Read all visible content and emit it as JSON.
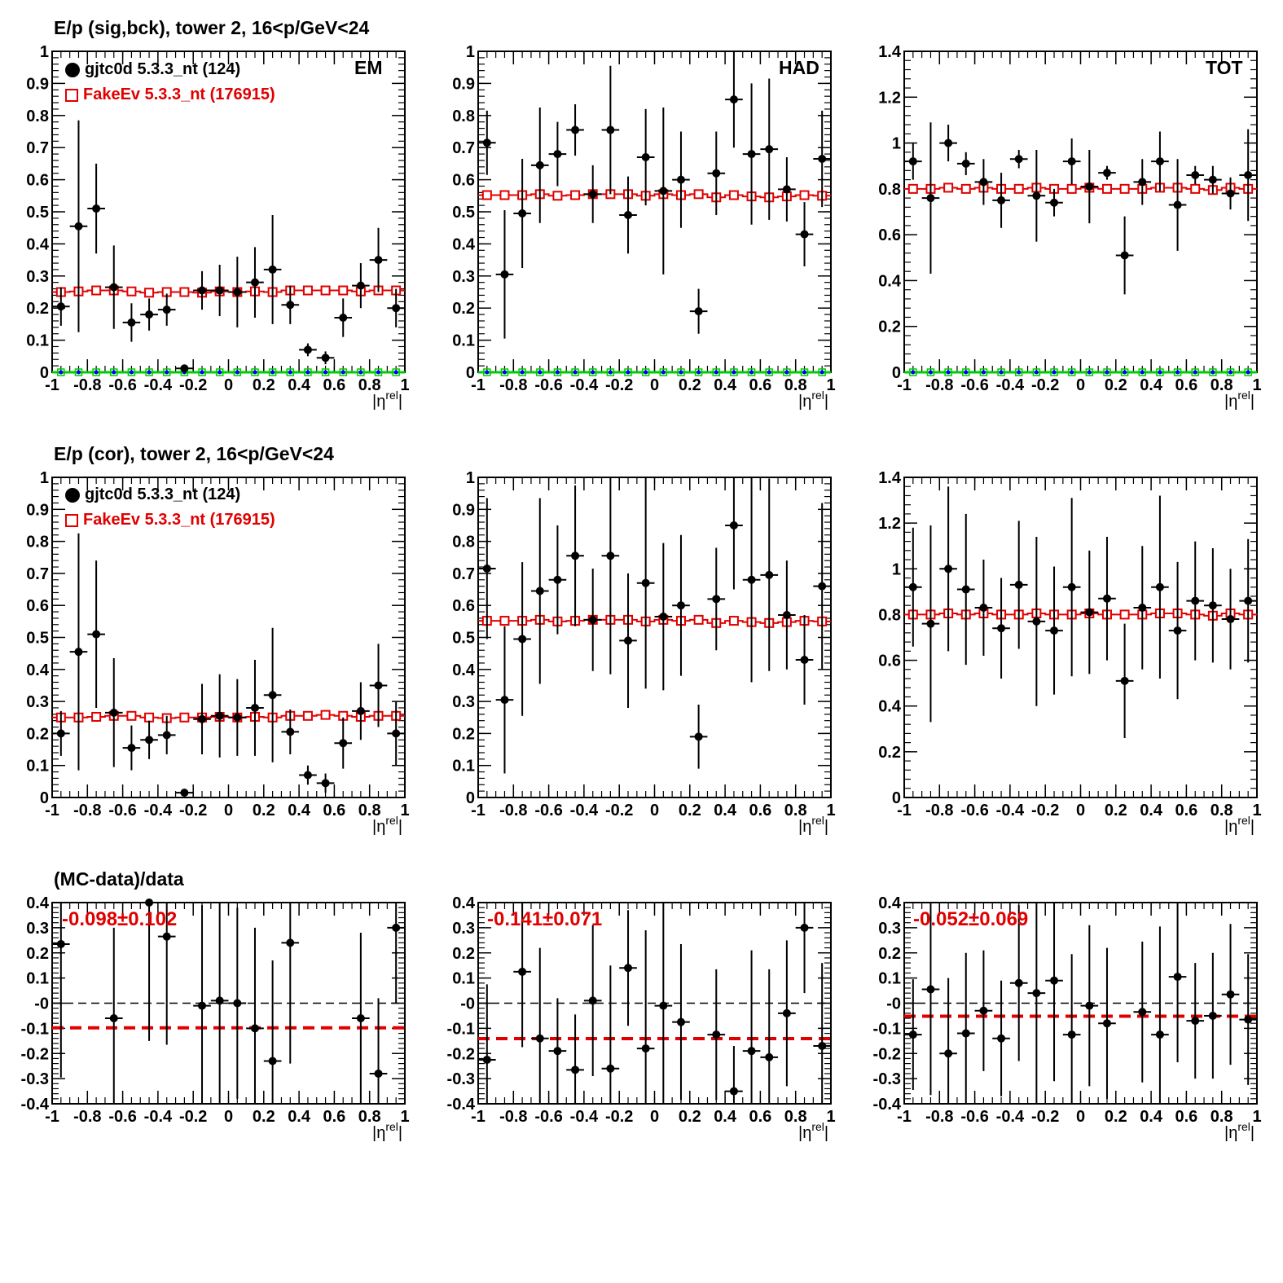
{
  "titles": {
    "row1": "E/p (sig,bck), tower 2, 16<p/GeV<24",
    "row2": "E/p (cor), tower 2, 16<p/GeV<24",
    "row3": "(MC-data)/data"
  },
  "legend": {
    "data_label": "gjtc0d 5.3.3_nt (124)",
    "mc_label": "FakeEv 5.3.3_nt (176915)"
  },
  "panel_tags": {
    "em": "EM",
    "had": "HAD",
    "tot": "TOT"
  },
  "ratio_labels": {
    "em": "-0.098±0.102",
    "had": "-0.141±0.071",
    "tot": "-0.052±0.069"
  },
  "colors": {
    "data": "#000000",
    "mc": "#e00000",
    "zero_line": "#00cc00",
    "zero_marker": "#0000ff"
  },
  "chart_data": [
    {
      "id": "em_sigbck",
      "type": "scatter",
      "xlabel": "|η^rel|",
      "ylabel": "",
      "xlim": [
        -1,
        1
      ],
      "ylim": [
        0,
        1
      ],
      "x": [
        -0.95,
        -0.85,
        -0.75,
        -0.65,
        -0.55,
        -0.45,
        -0.35,
        -0.25,
        -0.15,
        -0.05,
        0.05,
        0.15,
        0.25,
        0.35,
        0.45,
        0.55,
        0.65,
        0.75,
        0.85,
        0.95
      ],
      "series": [
        {
          "name": "gjtc0d 5.3.3_nt (124)",
          "values": [
            0.205,
            0.455,
            0.51,
            0.265,
            0.155,
            0.18,
            0.195,
            0.012,
            0.255,
            0.255,
            0.25,
            0.28,
            0.32,
            0.21,
            0.07,
            0.045,
            0.17,
            0.27,
            0.35,
            0.2
          ],
          "errors": [
            0.06,
            0.33,
            0.14,
            0.13,
            0.06,
            0.05,
            0.05,
            0.01,
            0.06,
            0.08,
            0.11,
            0.11,
            0.17,
            0.06,
            0.02,
            0.02,
            0.06,
            0.07,
            0.1,
            0.06
          ]
        },
        {
          "name": "FakeEv 5.3.3_nt (176915)",
          "values": [
            0.25,
            0.252,
            0.255,
            0.255,
            0.252,
            0.248,
            0.25,
            0.25,
            0.248,
            0.252,
            0.25,
            0.252,
            0.25,
            0.255,
            0.255,
            0.255,
            0.255,
            0.252,
            0.255,
            0.255
          ]
        },
        {
          "values": [
            0,
            0,
            0,
            0,
            0,
            0,
            0,
            0,
            0,
            0,
            0,
            0,
            0,
            0,
            0,
            0,
            0,
            0,
            0,
            0
          ]
        }
      ]
    },
    {
      "id": "had_sigbck",
      "type": "scatter",
      "xlabel": "|η^rel|",
      "ylabel": "",
      "xlim": [
        -1,
        1
      ],
      "ylim": [
        0,
        1
      ],
      "x": [
        -0.95,
        -0.85,
        -0.75,
        -0.65,
        -0.55,
        -0.45,
        -0.35,
        -0.25,
        -0.15,
        -0.05,
        0.05,
        0.15,
        0.25,
        0.35,
        0.45,
        0.55,
        0.65,
        0.75,
        0.85,
        0.95
      ],
      "series": [
        {
          "name": "gjtc0d 5.3.3_nt (124)",
          "values": [
            0.715,
            0.305,
            0.495,
            0.645,
            0.68,
            0.755,
            0.555,
            0.755,
            0.49,
            0.67,
            0.565,
            0.6,
            0.19,
            0.62,
            0.85,
            0.68,
            0.695,
            0.57,
            0.43,
            0.665
          ],
          "errors": [
            0.1,
            0.2,
            0.17,
            0.18,
            0.1,
            0.08,
            0.09,
            0.2,
            0.12,
            0.15,
            0.26,
            0.15,
            0.07,
            0.13,
            0.15,
            0.22,
            0.22,
            0.1,
            0.1,
            0.15
          ]
        },
        {
          "name": "FakeEv 5.3.3_nt (176915)",
          "values": [
            0.552,
            0.552,
            0.552,
            0.555,
            0.55,
            0.552,
            0.555,
            0.555,
            0.555,
            0.55,
            0.555,
            0.552,
            0.555,
            0.545,
            0.552,
            0.548,
            0.545,
            0.548,
            0.552,
            0.55
          ]
        },
        {
          "values": [
            0,
            0,
            0,
            0,
            0,
            0,
            0,
            0,
            0,
            0,
            0,
            0,
            0,
            0,
            0,
            0,
            0,
            0,
            0,
            0
          ]
        }
      ]
    },
    {
      "id": "tot_sigbck",
      "type": "scatter",
      "xlabel": "|η^rel|",
      "ylabel": "",
      "xlim": [
        -1,
        1
      ],
      "ylim": [
        0,
        1.4
      ],
      "x": [
        -0.95,
        -0.85,
        -0.75,
        -0.65,
        -0.55,
        -0.45,
        -0.35,
        -0.25,
        -0.15,
        -0.05,
        0.05,
        0.15,
        0.25,
        0.35,
        0.45,
        0.55,
        0.65,
        0.75,
        0.85,
        0.95
      ],
      "series": [
        {
          "name": "gjtc0d 5.3.3_nt (124)",
          "values": [
            0.92,
            0.76,
            1.0,
            0.91,
            0.83,
            0.75,
            0.93,
            0.77,
            0.74,
            0.92,
            0.81,
            0.87,
            0.51,
            0.83,
            0.92,
            0.73,
            0.86,
            0.84,
            0.78,
            0.86
          ],
          "errors": [
            0.08,
            0.33,
            0.08,
            0.05,
            0.1,
            0.12,
            0.04,
            0.2,
            0.06,
            0.1,
            0.16,
            0.03,
            0.17,
            0.1,
            0.13,
            0.2,
            0.04,
            0.06,
            0.07,
            0.2
          ]
        },
        {
          "name": "FakeEv 5.3.3_nt (176915)",
          "values": [
            0.8,
            0.8,
            0.805,
            0.8,
            0.805,
            0.8,
            0.8,
            0.805,
            0.8,
            0.8,
            0.805,
            0.8,
            0.8,
            0.8,
            0.805,
            0.805,
            0.8,
            0.795,
            0.805,
            0.8
          ]
        },
        {
          "values": [
            0,
            0,
            0,
            0,
            0,
            0,
            0,
            0,
            0,
            0,
            0,
            0,
            0,
            0,
            0,
            0,
            0,
            0,
            0,
            0
          ]
        }
      ]
    },
    {
      "id": "em_cor",
      "type": "scatter",
      "xlabel": "|η^rel|",
      "ylabel": "",
      "xlim": [
        -1,
        1
      ],
      "ylim": [
        0,
        1
      ],
      "x": [
        -0.95,
        -0.85,
        -0.75,
        -0.65,
        -0.55,
        -0.45,
        -0.35,
        -0.25,
        -0.15,
        -0.05,
        0.05,
        0.15,
        0.25,
        0.35,
        0.45,
        0.55,
        0.65,
        0.75,
        0.85,
        0.95
      ],
      "series": [
        {
          "name": "gjtc0d 5.3.3_nt (124)",
          "values": [
            0.2,
            0.455,
            0.51,
            0.265,
            0.155,
            0.18,
            0.195,
            0.015,
            0.245,
            0.255,
            0.25,
            0.28,
            0.32,
            0.205,
            0.07,
            0.045,
            0.17,
            0.27,
            0.35,
            0.2
          ],
          "errors": [
            0.07,
            0.37,
            0.23,
            0.17,
            0.07,
            0.06,
            0.06,
            0.01,
            0.11,
            0.13,
            0.12,
            0.15,
            0.21,
            0.07,
            0.03,
            0.03,
            0.08,
            0.09,
            0.13,
            0.1
          ]
        },
        {
          "name": "FakeEv 5.3.3_nt (176915)",
          "values": [
            0.25,
            0.25,
            0.252,
            0.255,
            0.255,
            0.25,
            0.248,
            0.25,
            0.25,
            0.252,
            0.25,
            0.252,
            0.25,
            0.255,
            0.255,
            0.258,
            0.255,
            0.252,
            0.255,
            0.255
          ]
        }
      ]
    },
    {
      "id": "had_cor",
      "type": "scatter",
      "xlabel": "|η^rel|",
      "ylabel": "",
      "xlim": [
        -1,
        1
      ],
      "ylim": [
        0,
        1
      ],
      "x": [
        -0.95,
        -0.85,
        -0.75,
        -0.65,
        -0.55,
        -0.45,
        -0.35,
        -0.25,
        -0.15,
        -0.05,
        0.05,
        0.15,
        0.25,
        0.35,
        0.45,
        0.55,
        0.65,
        0.75,
        0.85,
        0.95
      ],
      "series": [
        {
          "name": "gjtc0d 5.3.3_nt (124)",
          "values": [
            0.715,
            0.305,
            0.495,
            0.645,
            0.68,
            0.755,
            0.555,
            0.755,
            0.49,
            0.67,
            0.565,
            0.6,
            0.19,
            0.62,
            0.85,
            0.68,
            0.695,
            0.57,
            0.43,
            0.66
          ],
          "errors": [
            0.22,
            0.23,
            0.24,
            0.29,
            0.17,
            0.22,
            0.16,
            0.37,
            0.21,
            0.33,
            0.23,
            0.22,
            0.1,
            0.16,
            0.2,
            0.32,
            0.3,
            0.17,
            0.14,
            0.26
          ]
        },
        {
          "name": "FakeEv 5.3.3_nt (176915)",
          "values": [
            0.552,
            0.552,
            0.552,
            0.555,
            0.55,
            0.552,
            0.555,
            0.555,
            0.555,
            0.55,
            0.555,
            0.552,
            0.555,
            0.545,
            0.552,
            0.548,
            0.545,
            0.548,
            0.552,
            0.55
          ]
        }
      ]
    },
    {
      "id": "tot_cor",
      "type": "scatter",
      "xlabel": "|η^rel|",
      "ylabel": "",
      "xlim": [
        -1,
        1
      ],
      "ylim": [
        0,
        1.4
      ],
      "x": [
        -0.95,
        -0.85,
        -0.75,
        -0.65,
        -0.55,
        -0.45,
        -0.35,
        -0.25,
        -0.15,
        -0.05,
        0.05,
        0.15,
        0.25,
        0.35,
        0.45,
        0.55,
        0.65,
        0.75,
        0.85,
        0.95
      ],
      "series": [
        {
          "name": "gjtc0d 5.3.3_nt (124)",
          "values": [
            0.92,
            0.76,
            1.0,
            0.91,
            0.83,
            0.74,
            0.93,
            0.77,
            0.73,
            0.92,
            0.81,
            0.87,
            0.51,
            0.83,
            0.92,
            0.73,
            0.86,
            0.84,
            0.78,
            0.86
          ],
          "errors": [
            0.26,
            0.43,
            0.36,
            0.33,
            0.21,
            0.22,
            0.28,
            0.37,
            0.28,
            0.39,
            0.27,
            0.27,
            0.25,
            0.27,
            0.4,
            0.3,
            0.26,
            0.25,
            0.22,
            0.27
          ]
        },
        {
          "name": "FakeEv 5.3.3_nt (176915)",
          "values": [
            0.8,
            0.8,
            0.805,
            0.8,
            0.805,
            0.8,
            0.8,
            0.805,
            0.8,
            0.8,
            0.805,
            0.8,
            0.8,
            0.8,
            0.805,
            0.805,
            0.8,
            0.795,
            0.805,
            0.8
          ]
        }
      ]
    },
    {
      "id": "em_ratio",
      "type": "scatter",
      "xlabel": "|η^rel|",
      "ylabel": "",
      "xlim": [
        -1,
        1
      ],
      "ylim": [
        -0.4,
        0.4
      ],
      "x": [
        -0.95,
        -0.65,
        -0.45,
        -0.35,
        -0.15,
        -0.05,
        0.05,
        0.15,
        0.25,
        0.35,
        0.75,
        0.85,
        0.95
      ],
      "series": [
        {
          "name": "gjtc0d 5.3.3_nt (124)",
          "values": [
            0.235,
            -0.06,
            0.4,
            0.265,
            -0.01,
            0.01,
            0.0,
            -0.1,
            -0.23,
            0.24,
            -0.06,
            -0.28,
            0.3
          ],
          "errors": [
            0.53,
            0.36,
            0.55,
            0.43,
            0.4,
            0.44,
            0.38,
            0.4,
            0.4,
            0.48,
            0.34,
            0.3,
            0.3
          ]
        }
      ],
      "fit": -0.098,
      "reference": 0
    },
    {
      "id": "had_ratio",
      "type": "scatter",
      "xlabel": "|η^rel|",
      "ylabel": "",
      "xlim": [
        -1,
        1
      ],
      "ylim": [
        -0.4,
        0.4
      ],
      "x": [
        -0.95,
        -0.75,
        -0.65,
        -0.55,
        -0.45,
        -0.35,
        -0.25,
        -0.15,
        -0.05,
        0.05,
        0.15,
        0.35,
        0.45,
        0.55,
        0.65,
        0.75,
        0.85,
        0.95
      ],
      "series": [
        {
          "name": "gjtc0d 5.3.3_nt (124)",
          "values": [
            -0.225,
            0.125,
            -0.14,
            -0.19,
            -0.265,
            0.01,
            -0.26,
            0.14,
            -0.18,
            -0.01,
            -0.075,
            -0.125,
            -0.35,
            -0.19,
            -0.215,
            -0.04,
            0.3,
            -0.17
          ],
          "errors": [
            0.3,
            0.3,
            0.36,
            0.21,
            0.22,
            0.3,
            0.41,
            0.23,
            0.47,
            0.42,
            0.31,
            0.26,
            0.18,
            0.4,
            0.35,
            0.29,
            0.26,
            0.33
          ]
        }
      ],
      "fit": -0.141,
      "reference": 0
    },
    {
      "id": "tot_ratio",
      "type": "scatter",
      "xlabel": "|η^rel|",
      "ylabel": "",
      "xlim": [
        -1,
        1
      ],
      "ylim": [
        -0.4,
        0.4
      ],
      "x": [
        -0.95,
        -0.85,
        -0.75,
        -0.65,
        -0.55,
        -0.45,
        -0.35,
        -0.25,
        -0.15,
        -0.05,
        0.05,
        0.15,
        0.35,
        0.45,
        0.55,
        0.65,
        0.75,
        0.85,
        0.95
      ],
      "series": [
        {
          "name": "gjtc0d 5.3.3_nt (124)",
          "values": [
            -0.125,
            0.055,
            -0.2,
            -0.12,
            -0.03,
            -0.14,
            0.08,
            0.04,
            0.09,
            -0.125,
            -0.01,
            -0.08,
            -0.035,
            -0.125,
            0.105,
            -0.07,
            -0.05,
            0.035,
            -0.065
          ],
          "errors": [
            0.22,
            0.42,
            0.3,
            0.32,
            0.24,
            0.23,
            0.31,
            0.44,
            0.4,
            0.32,
            0.32,
            0.3,
            0.28,
            0.43,
            0.34,
            0.23,
            0.25,
            0.28,
            0.26
          ]
        }
      ],
      "fit": -0.052,
      "reference": 0
    }
  ]
}
